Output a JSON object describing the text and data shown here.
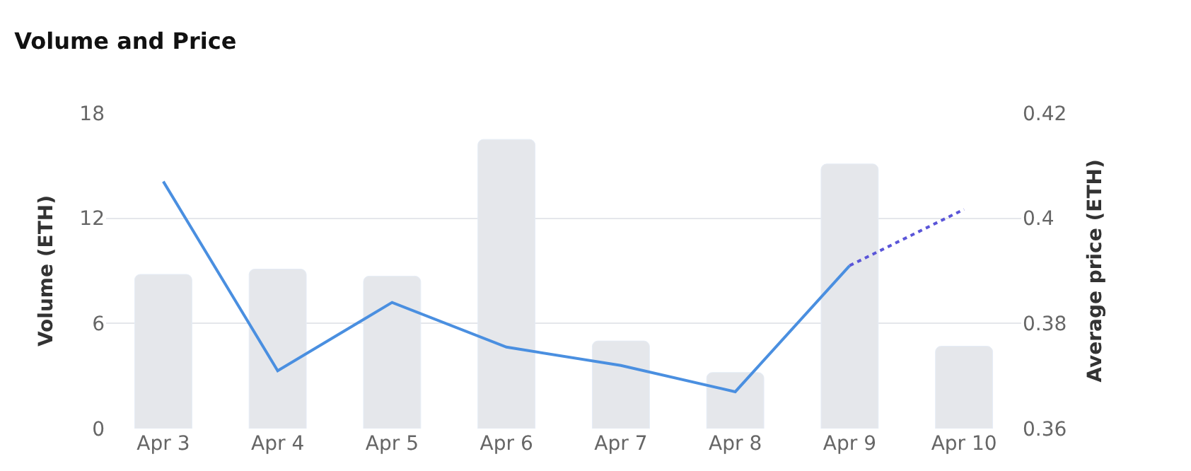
{
  "chart_data": {
    "type": "bar",
    "title": "Volume and Price",
    "categories": [
      "Apr 3",
      "Apr 4",
      "Apr 5",
      "Apr 6",
      "Apr 7",
      "Apr 8",
      "Apr 9",
      "Apr 10"
    ],
    "series": [
      {
        "color": "#e5e7eb",
        "values": [
          8.8,
          9.1,
          8.7,
          16.5,
          5.0,
          3.2,
          15.1,
          4.7
        ]
      },
      {
        "type": "line",
        "axis": "y2",
        "color": "#4a8fe0",
        "line_style": "solid",
        "values": [
          0.407,
          0.371,
          0.384,
          0.3755,
          0.372,
          0.367,
          0.391,
          null
        ]
      },
      {
        "type": "line",
        "axis": "y2",
        "color": "#5a55d8",
        "line_style": "dotted",
        "values": [
          null,
          null,
          null,
          null,
          null,
          null,
          0.391,
          0.4017
        ]
      }
    ],
    "ylabel": "Volume (ETH)",
    "y2label": "Average price (ETH)",
    "ylim": [
      0,
      18
    ],
    "yticks": [
      0,
      6,
      12,
      18
    ],
    "y2lim": [
      0.36,
      0.42
    ],
    "y2ticks": [
      0.36,
      0.38,
      0.4,
      0.42
    ],
    "grid": "y"
  }
}
